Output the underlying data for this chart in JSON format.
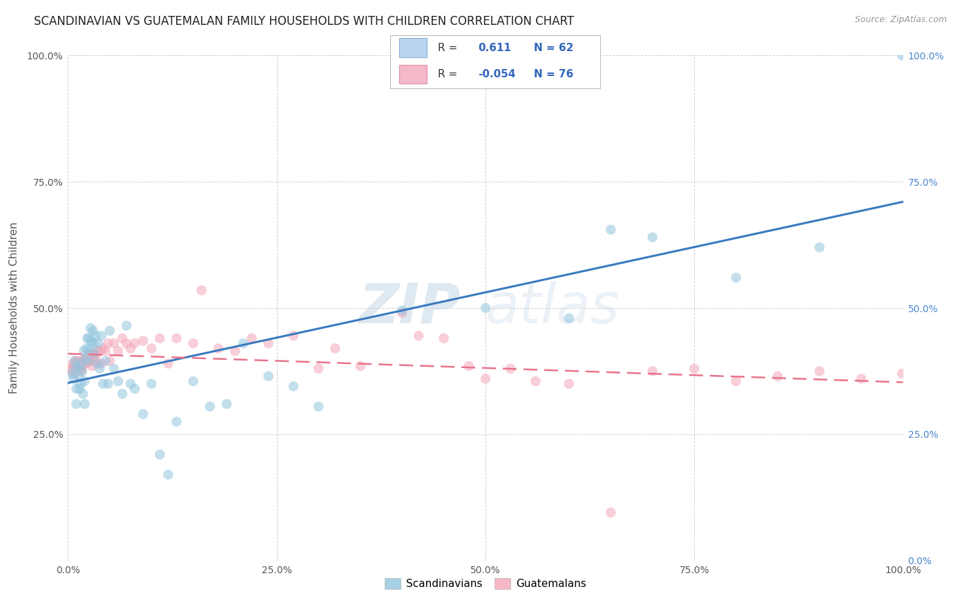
{
  "title": "SCANDINAVIAN VS GUATEMALAN FAMILY HOUSEHOLDS WITH CHILDREN CORRELATION CHART",
  "source": "Source: ZipAtlas.com",
  "ylabel": "Family Households with Children",
  "watermark": "ZIPatlas",
  "legend_r_scand": "0.611",
  "legend_n_scand": "62",
  "legend_r_guate": "-0.054",
  "legend_n_guate": "76",
  "scand_color": "#92c5de",
  "guate_color": "#f4a6b8",
  "scand_line_color": "#3a7bbf",
  "guate_line_color": "#e8738a",
  "bg_color": "#ffffff",
  "grid_color": "#cccccc",
  "title_fontsize": 12,
  "axis_fontsize": 11,
  "tick_fontsize": 10,
  "right_tick_color": "#4d88cc",
  "xticks": [
    0.0,
    0.25,
    0.5,
    0.75,
    1.0
  ],
  "yticks": [
    0.0,
    0.25,
    0.5,
    0.75,
    1.0
  ],
  "xticklabels": [
    "0.0%",
    "25.0%",
    "50.0%",
    "75.0%",
    "100.0%"
  ],
  "yticklabels": [
    "",
    "25.0%",
    "50.0%",
    "75.0%",
    "100.0%"
  ],
  "right_yticklabels": [
    "0.0%",
    "25.0%",
    "50.0%",
    "75.0%",
    "100.0%"
  ],
  "scand_x": [
    0.005,
    0.007,
    0.008,
    0.009,
    0.01,
    0.01,
    0.012,
    0.013,
    0.014,
    0.015,
    0.016,
    0.017,
    0.018,
    0.019,
    0.02,
    0.02,
    0.021,
    0.022,
    0.023,
    0.024,
    0.025,
    0.026,
    0.027,
    0.028,
    0.03,
    0.031,
    0.032,
    0.033,
    0.035,
    0.036,
    0.038,
    0.04,
    0.042,
    0.045,
    0.048,
    0.05,
    0.055,
    0.06,
    0.065,
    0.07,
    0.075,
    0.08,
    0.09,
    0.1,
    0.11,
    0.12,
    0.13,
    0.15,
    0.17,
    0.19,
    0.21,
    0.24,
    0.27,
    0.3,
    0.4,
    0.5,
    0.6,
    0.65,
    0.7,
    0.8,
    0.9,
    0.999
  ],
  "scand_y": [
    0.37,
    0.36,
    0.395,
    0.38,
    0.34,
    0.31,
    0.385,
    0.365,
    0.34,
    0.35,
    0.39,
    0.375,
    0.33,
    0.415,
    0.355,
    0.31,
    0.4,
    0.42,
    0.44,
    0.395,
    0.44,
    0.42,
    0.46,
    0.435,
    0.455,
    0.43,
    0.41,
    0.445,
    0.39,
    0.43,
    0.38,
    0.445,
    0.35,
    0.395,
    0.35,
    0.455,
    0.38,
    0.355,
    0.33,
    0.465,
    0.35,
    0.34,
    0.29,
    0.35,
    0.21,
    0.17,
    0.275,
    0.355,
    0.305,
    0.31,
    0.43,
    0.365,
    0.345,
    0.305,
    0.495,
    0.5,
    0.48,
    0.655,
    0.64,
    0.56,
    0.62,
    1.0
  ],
  "guate_x": [
    0.004,
    0.005,
    0.006,
    0.007,
    0.008,
    0.009,
    0.01,
    0.011,
    0.012,
    0.013,
    0.014,
    0.015,
    0.016,
    0.016,
    0.017,
    0.018,
    0.019,
    0.02,
    0.021,
    0.022,
    0.023,
    0.024,
    0.025,
    0.026,
    0.027,
    0.028,
    0.029,
    0.03,
    0.031,
    0.032,
    0.033,
    0.035,
    0.037,
    0.039,
    0.04,
    0.042,
    0.045,
    0.048,
    0.05,
    0.055,
    0.06,
    0.065,
    0.07,
    0.075,
    0.08,
    0.09,
    0.1,
    0.11,
    0.12,
    0.13,
    0.15,
    0.16,
    0.18,
    0.2,
    0.22,
    0.24,
    0.27,
    0.3,
    0.32,
    0.35,
    0.4,
    0.42,
    0.45,
    0.48,
    0.5,
    0.53,
    0.56,
    0.6,
    0.65,
    0.7,
    0.75,
    0.8,
    0.85,
    0.9,
    0.95,
    0.999
  ],
  "guate_y": [
    0.38,
    0.375,
    0.39,
    0.385,
    0.37,
    0.395,
    0.385,
    0.38,
    0.395,
    0.39,
    0.385,
    0.38,
    0.395,
    0.375,
    0.385,
    0.395,
    0.39,
    0.4,
    0.395,
    0.39,
    0.4,
    0.41,
    0.395,
    0.395,
    0.405,
    0.41,
    0.385,
    0.405,
    0.41,
    0.395,
    0.405,
    0.415,
    0.39,
    0.415,
    0.39,
    0.42,
    0.415,
    0.43,
    0.395,
    0.43,
    0.415,
    0.44,
    0.43,
    0.42,
    0.43,
    0.435,
    0.42,
    0.44,
    0.39,
    0.44,
    0.43,
    0.535,
    0.42,
    0.415,
    0.44,
    0.43,
    0.445,
    0.38,
    0.42,
    0.385,
    0.49,
    0.445,
    0.44,
    0.385,
    0.36,
    0.38,
    0.355,
    0.35,
    0.095,
    0.375,
    0.38,
    0.355,
    0.365,
    0.375,
    0.36,
    0.37
  ]
}
